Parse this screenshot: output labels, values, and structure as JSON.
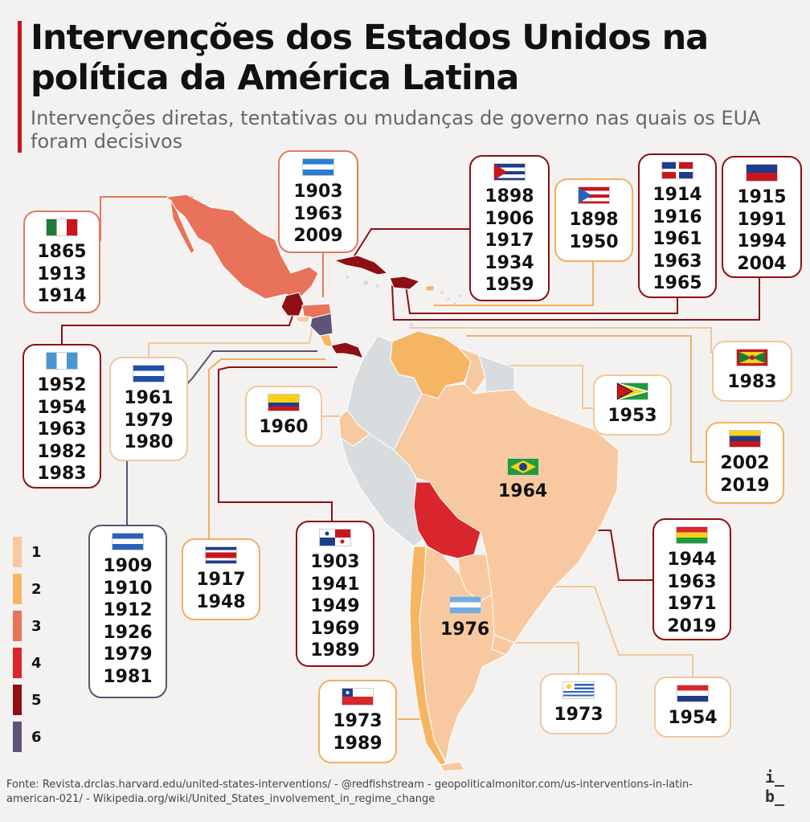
{
  "header": {
    "title": "Intervenções dos Estados Unidos na política da América Latina",
    "subtitle": "Intervenções diretas, tentativas ou mudanças de governo nas quais os EUA foram decisivos"
  },
  "colors": {
    "level_1": "#f8c9a0",
    "level_2": "#f5b563",
    "level_3": "#e8735a",
    "level_4": "#d8262c",
    "level_5": "#8e0f14",
    "level_6": "#5e5478",
    "no_intervention": "#d9dcdf"
  },
  "legend": {
    "items": [
      {
        "label": "1",
        "color": "#f8c9a0"
      },
      {
        "label": "2",
        "color": "#f5b563"
      },
      {
        "label": "3",
        "color": "#e8735a"
      },
      {
        "label": "4",
        "color": "#d8262c"
      },
      {
        "label": "5",
        "color": "#8e0f14"
      },
      {
        "label": "6",
        "color": "#5e5478"
      }
    ]
  },
  "countries": {
    "mexico": {
      "flag": "mexico-flag",
      "years": [
        "1865",
        "1913",
        "1914"
      ]
    },
    "honduras": {
      "flag": "honduras-flag",
      "years": [
        "1903",
        "1963",
        "2009"
      ]
    },
    "cuba": {
      "flag": "cuba-flag",
      "years": [
        "1898",
        "1906",
        "1917",
        "1934",
        "1959"
      ]
    },
    "puerto_rico": {
      "flag": "puerto-rico-flag",
      "years": [
        "1898",
        "1950"
      ]
    },
    "dominican_republic": {
      "flag": "dominican-republic-flag",
      "years": [
        "1914",
        "1916",
        "1961",
        "1963",
        "1965"
      ]
    },
    "haiti": {
      "flag": "haiti-flag",
      "years": [
        "1915",
        "1991",
        "1994",
        "2004"
      ]
    },
    "guatemala": {
      "flag": "guatemala-flag",
      "years": [
        "1952",
        "1954",
        "1963",
        "1982",
        "1983"
      ]
    },
    "el_salvador": {
      "flag": "el-salvador-flag",
      "years": [
        "1961",
        "1979",
        "1980"
      ]
    },
    "ecuador": {
      "flag": "ecuador-flag",
      "years": [
        "1960"
      ]
    },
    "grenada": {
      "flag": "grenada-flag",
      "years": [
        "1983"
      ]
    },
    "guyana": {
      "flag": "guyana-flag",
      "years": [
        "1953"
      ]
    },
    "venezuela": {
      "flag": "venezuela-flag",
      "years": [
        "2002",
        "2019"
      ]
    },
    "brazil": {
      "flag": "brazil-flag",
      "years": [
        "1964"
      ]
    },
    "nicaragua": {
      "flag": "nicaragua-flag",
      "years": [
        "1909",
        "1910",
        "1912",
        "1926",
        "1979",
        "1981"
      ]
    },
    "costa_rica": {
      "flag": "costa-rica-flag",
      "years": [
        "1917",
        "1948"
      ]
    },
    "panama": {
      "flag": "panama-flag",
      "years": [
        "1903",
        "1941",
        "1949",
        "1969",
        "1989"
      ]
    },
    "bolivia": {
      "flag": "bolivia-flag",
      "years": [
        "1944",
        "1963",
        "1971",
        "2019"
      ]
    },
    "argentina": {
      "flag": "argentina-flag",
      "years": [
        "1976"
      ]
    },
    "chile": {
      "flag": "chile-flag",
      "years": [
        "1973",
        "1989"
      ]
    },
    "uruguay": {
      "flag": "uruguay-flag",
      "years": [
        "1973"
      ]
    },
    "paraguay": {
      "flag": "paraguay-flag",
      "years": [
        "1954"
      ]
    }
  },
  "footer": {
    "source": "Fonte: Revista.drclas.harvard.edu/united-states-interventions/ - @redfishstream - geopoliticalmonitor.com/us-interventions-in-latin-american-021/  -  Wikipedia.org/wiki/United_States_involvement_in_regime_change",
    "logo": "i_ b_"
  }
}
